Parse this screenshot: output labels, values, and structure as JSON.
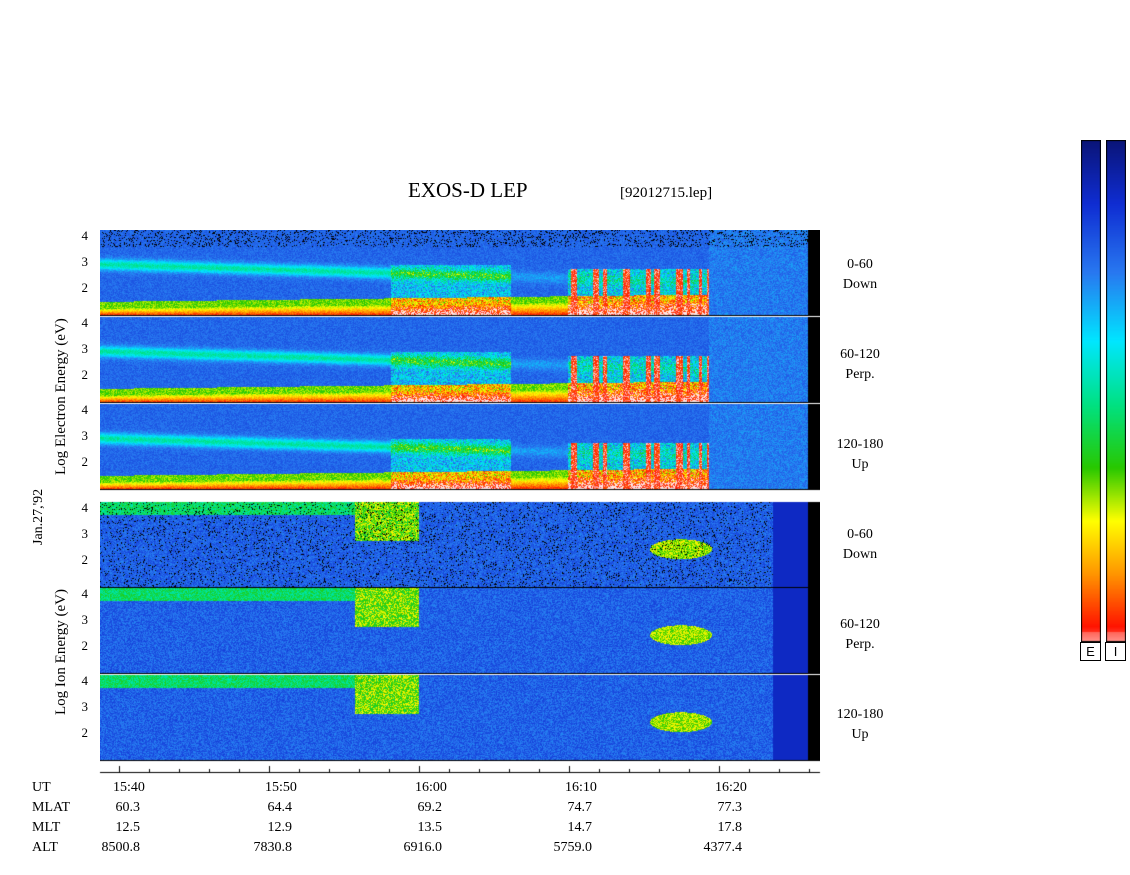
{
  "title": "EXOS-D LEP",
  "file": "[92012715.lep]",
  "date_label": "Jan.27,'92",
  "electron_ylabel": [
    "Log",
    "Electron",
    "Energy",
    "(eV)"
  ],
  "ion_ylabel": [
    "Log",
    "Ion",
    "Energy",
    "(eV)"
  ],
  "y_ticks": [
    "4",
    "3",
    "2"
  ],
  "panels": [
    {
      "species": "Electron",
      "pitch": "0-60",
      "dir": "Down"
    },
    {
      "species": "Electron",
      "pitch": "60-120",
      "dir": "Perp."
    },
    {
      "species": "Electron",
      "pitch": "120-180",
      "dir": "Up"
    },
    {
      "species": "Ion",
      "pitch": "0-60",
      "dir": "Down"
    },
    {
      "species": "Ion",
      "pitch": "60-120",
      "dir": "Perp."
    },
    {
      "species": "Ion",
      "pitch": "120-180",
      "dir": "Up"
    }
  ],
  "colorbar_labels": [
    "E",
    "I"
  ],
  "colorbar_colors": [
    "#04045a",
    "#0a2adf",
    "#23aaf0",
    "#00ffff",
    "#00e080",
    "#00c000",
    "#ffff00",
    "#ff9a00",
    "#ff0000",
    "#ffffff"
  ],
  "chart_data": {
    "type": "heatmap",
    "title": "EXOS-D LEP",
    "x_ticks": [
      "15:40",
      "15:50",
      "16:00",
      "16:10",
      "16:20"
    ],
    "ylim": [
      1,
      4.3
    ],
    "y_ticks": [
      2,
      3,
      4
    ],
    "table": {
      "UT": [
        "15:40",
        "15:50",
        "16:00",
        "16:10",
        "16:20"
      ],
      "MLAT": [
        "60.3",
        "64.4",
        "69.2",
        "74.7",
        "77.3"
      ],
      "MLT": [
        "12.5",
        "12.9",
        "13.5",
        "14.7",
        "17.8"
      ],
      "ALT": [
        "8500.8",
        "7830.8",
        "6916.0",
        "5759.0",
        "4377.4"
      ]
    }
  }
}
